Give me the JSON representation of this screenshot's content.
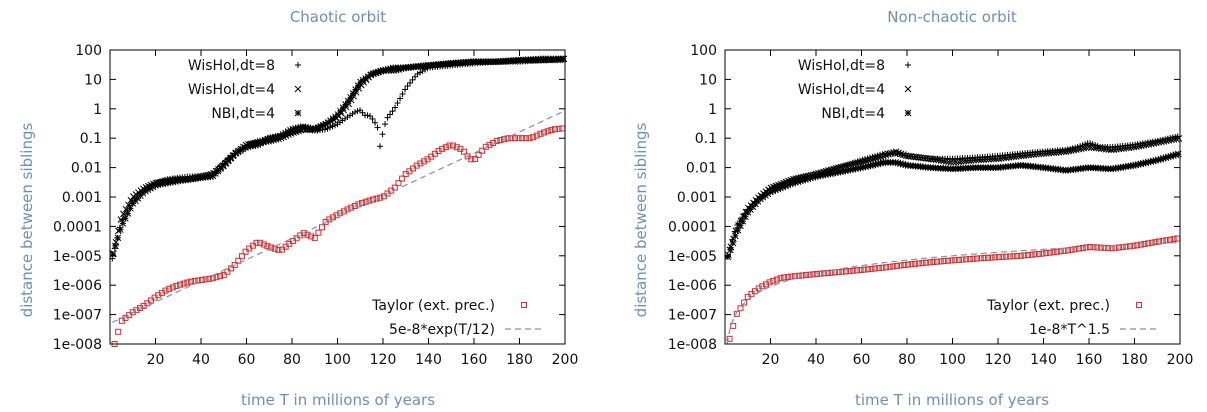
{
  "chart_data": [
    {
      "type": "scatter",
      "title": "Chaotic orbit",
      "xlabel": "time T in millions of years",
      "ylabel": "distance between siblings",
      "xlim": [
        0,
        200
      ],
      "ylim": [
        1e-08,
        100
      ],
      "yscale": "log",
      "x_ticks": [
        20,
        40,
        60,
        80,
        100,
        120,
        140,
        160,
        180,
        200
      ],
      "y_ticks": [
        "100",
        "10",
        "1",
        "0.1",
        "0.01",
        "0.001",
        "0.0001",
        "1e-005",
        "1e-006",
        "1e-007",
        "1e-008"
      ],
      "legend_position": "top-left",
      "legend2_position": "bottom-right",
      "series": [
        {
          "name": "WisHol,dt=8",
          "marker": "plus",
          "color": "#000000",
          "points": [
            [
              1,
              8e-06
            ],
            [
              5,
              0.00015
            ],
            [
              10,
              0.0008
            ],
            [
              15,
              0.002
            ],
            [
              20,
              0.003
            ],
            [
              25,
              0.004
            ],
            [
              30,
              0.0045
            ],
            [
              35,
              0.005
            ],
            [
              40,
              0.005
            ],
            [
              45,
              0.006
            ],
            [
              50,
              0.015
            ],
            [
              55,
              0.03
            ],
            [
              60,
              0.06
            ],
            [
              65,
              0.08
            ],
            [
              70,
              0.1
            ],
            [
              75,
              0.12
            ],
            [
              80,
              0.15
            ],
            [
              85,
              0.2
            ],
            [
              90,
              0.18
            ],
            [
              95,
              0.2
            ],
            [
              100,
              0.3
            ],
            [
              104,
              0.5
            ],
            [
              108,
              0.8
            ],
            [
              110,
              0.9
            ],
            [
              112,
              0.6
            ],
            [
              114,
              0.6
            ],
            [
              116,
              0.4
            ],
            [
              118,
              0.2
            ],
            [
              119,
              0.03
            ],
            [
              120,
              0.2
            ],
            [
              122,
              0.5
            ],
            [
              125,
              1
            ],
            [
              130,
              5
            ],
            [
              135,
              15
            ],
            [
              140,
              25
            ],
            [
              150,
              30
            ],
            [
              160,
              35
            ],
            [
              170,
              40
            ],
            [
              180,
              40
            ],
            [
              190,
              45
            ],
            [
              200,
              45
            ]
          ]
        },
        {
          "name": "WisHol,dt=4",
          "marker": "cross",
          "color": "#000000",
          "points": [
            [
              1,
              8e-06
            ],
            [
              5,
              0.0002
            ],
            [
              10,
              0.001
            ],
            [
              15,
              0.002
            ],
            [
              20,
              0.003
            ],
            [
              25,
              0.0035
            ],
            [
              30,
              0.004
            ],
            [
              35,
              0.004
            ],
            [
              40,
              0.005
            ],
            [
              45,
              0.006
            ],
            [
              50,
              0.012
            ],
            [
              55,
              0.03
            ],
            [
              60,
              0.06
            ],
            [
              65,
              0.07
            ],
            [
              70,
              0.08
            ],
            [
              75,
              0.1
            ],
            [
              80,
              0.15
            ],
            [
              85,
              0.2
            ],
            [
              90,
              0.2
            ],
            [
              95,
              0.3
            ],
            [
              100,
              0.5
            ],
            [
              105,
              1.5
            ],
            [
              110,
              6
            ],
            [
              115,
              15
            ],
            [
              120,
              20
            ],
            [
              125,
              20
            ],
            [
              130,
              25
            ],
            [
              140,
              30
            ],
            [
              150,
              35
            ],
            [
              160,
              40
            ],
            [
              170,
              40
            ],
            [
              180,
              45
            ],
            [
              190,
              45
            ],
            [
              200,
              50
            ]
          ]
        },
        {
          "name": "NBI,dt=4",
          "marker": "star",
          "color": "#000000",
          "points": [
            [
              1,
              1e-05
            ],
            [
              5,
              0.0001
            ],
            [
              10,
              0.0006
            ],
            [
              15,
              0.0015
            ],
            [
              20,
              0.0025
            ],
            [
              25,
              0.003
            ],
            [
              30,
              0.0035
            ],
            [
              35,
              0.004
            ],
            [
              40,
              0.0045
            ],
            [
              45,
              0.005
            ],
            [
              50,
              0.012
            ],
            [
              55,
              0.03
            ],
            [
              60,
              0.05
            ],
            [
              65,
              0.06
            ],
            [
              70,
              0.1
            ],
            [
              75,
              0.12
            ],
            [
              80,
              0.2
            ],
            [
              85,
              0.25
            ],
            [
              90,
              0.2
            ],
            [
              95,
              0.3
            ],
            [
              100,
              0.6
            ],
            [
              105,
              2
            ],
            [
              110,
              8
            ],
            [
              115,
              15
            ],
            [
              120,
              20
            ],
            [
              125,
              25
            ],
            [
              130,
              25
            ],
            [
              140,
              30
            ],
            [
              150,
              35
            ],
            [
              160,
              40
            ],
            [
              170,
              40
            ],
            [
              180,
              45
            ],
            [
              190,
              50
            ],
            [
              200,
              50
            ]
          ]
        },
        {
          "name": "Taylor (ext. prec.)",
          "marker": "square",
          "color": "#d03030",
          "points": [
            [
              2,
              1e-08
            ],
            [
              5,
              6e-08
            ],
            [
              10,
              1.2e-07
            ],
            [
              15,
              2e-07
            ],
            [
              20,
              4e-07
            ],
            [
              25,
              7e-07
            ],
            [
              30,
              1e-06
            ],
            [
              35,
              1.3e-06
            ],
            [
              40,
              1.5e-06
            ],
            [
              45,
              1.7e-06
            ],
            [
              50,
              2.2e-06
            ],
            [
              55,
              5e-06
            ],
            [
              60,
              1.5e-05
            ],
            [
              65,
              3e-05
            ],
            [
              70,
              2e-05
            ],
            [
              75,
              1.5e-05
            ],
            [
              80,
              3e-05
            ],
            [
              85,
              6e-05
            ],
            [
              90,
              4e-05
            ],
            [
              95,
              0.00015
            ],
            [
              100,
              0.00025
            ],
            [
              105,
              0.0004
            ],
            [
              110,
              0.0006
            ],
            [
              115,
              0.0008
            ],
            [
              120,
              0.001
            ],
            [
              125,
              0.002
            ],
            [
              130,
              0.006
            ],
            [
              135,
              0.012
            ],
            [
              140,
              0.02
            ],
            [
              145,
              0.04
            ],
            [
              150,
              0.06
            ],
            [
              155,
              0.04
            ],
            [
              158,
              0.02
            ],
            [
              160,
              0.018
            ],
            [
              165,
              0.05
            ],
            [
              170,
              0.08
            ],
            [
              175,
              0.1
            ],
            [
              180,
              0.1
            ],
            [
              185,
              0.1
            ],
            [
              190,
              0.15
            ],
            [
              195,
              0.2
            ],
            [
              200,
              0.22
            ]
          ]
        },
        {
          "name": "5e-8*exp(T/12)",
          "marker": "dashed-line",
          "color": "#7d91bb",
          "function": "5e-8*exp(T/12)"
        }
      ]
    },
    {
      "type": "scatter",
      "title": "Non-chaotic orbit",
      "xlabel": "time T in millions of years",
      "ylabel": "distance between siblings",
      "xlim": [
        0,
        200
      ],
      "ylim": [
        1e-08,
        100
      ],
      "yscale": "log",
      "x_ticks": [
        20,
        40,
        60,
        80,
        100,
        120,
        140,
        160,
        180,
        200
      ],
      "y_ticks": [
        "100",
        "10",
        "1",
        "0.1",
        "0.01",
        "0.001",
        "0.0001",
        "1e-005",
        "1e-006",
        "1e-007",
        "1e-008"
      ],
      "legend_position": "top-left",
      "legend2_position": "bottom-right",
      "series": [
        {
          "name": "WisHol,dt=8",
          "marker": "plus",
          "color": "#000000",
          "points": [
            [
              1,
              1e-05
            ],
            [
              5,
              0.0001
            ],
            [
              10,
              0.0004
            ],
            [
              15,
              0.001
            ],
            [
              20,
              0.002
            ],
            [
              30,
              0.004
            ],
            [
              40,
              0.006
            ],
            [
              50,
              0.01
            ],
            [
              60,
              0.018
            ],
            [
              70,
              0.03
            ],
            [
              75,
              0.03
            ],
            [
              80,
              0.025
            ],
            [
              90,
              0.02
            ],
            [
              100,
              0.02
            ],
            [
              110,
              0.022
            ],
            [
              120,
              0.025
            ],
            [
              130,
              0.03
            ],
            [
              140,
              0.035
            ],
            [
              150,
              0.04
            ],
            [
              155,
              0.05
            ],
            [
              160,
              0.07
            ],
            [
              165,
              0.05
            ],
            [
              170,
              0.05
            ],
            [
              180,
              0.06
            ],
            [
              190,
              0.08
            ],
            [
              200,
              0.12
            ]
          ]
        },
        {
          "name": "WisHol,dt=4",
          "marker": "cross",
          "color": "#000000",
          "points": [
            [
              1,
              8e-06
            ],
            [
              5,
              8e-05
            ],
            [
              10,
              0.0004
            ],
            [
              15,
              0.001
            ],
            [
              20,
              0.002
            ],
            [
              30,
              0.004
            ],
            [
              40,
              0.006
            ],
            [
              50,
              0.01
            ],
            [
              60,
              0.015
            ],
            [
              70,
              0.025
            ],
            [
              75,
              0.035
            ],
            [
              80,
              0.025
            ],
            [
              90,
              0.02
            ],
            [
              100,
              0.015
            ],
            [
              110,
              0.018
            ],
            [
              120,
              0.02
            ],
            [
              130,
              0.025
            ],
            [
              140,
              0.03
            ],
            [
              150,
              0.035
            ],
            [
              160,
              0.05
            ],
            [
              170,
              0.04
            ],
            [
              180,
              0.05
            ],
            [
              190,
              0.07
            ],
            [
              200,
              0.1
            ]
          ]
        },
        {
          "name": "NBI,dt=4",
          "marker": "star",
          "color": "#000000",
          "points": [
            [
              1,
              8e-06
            ],
            [
              5,
              6e-05
            ],
            [
              10,
              0.0003
            ],
            [
              15,
              0.0008
            ],
            [
              20,
              0.0015
            ],
            [
              30,
              0.003
            ],
            [
              40,
              0.005
            ],
            [
              50,
              0.007
            ],
            [
              60,
              0.01
            ],
            [
              70,
              0.015
            ],
            [
              75,
              0.015
            ],
            [
              80,
              0.012
            ],
            [
              90,
              0.01
            ],
            [
              100,
              0.009
            ],
            [
              110,
              0.01
            ],
            [
              120,
              0.01
            ],
            [
              130,
              0.012
            ],
            [
              140,
              0.01
            ],
            [
              150,
              0.008
            ],
            [
              160,
              0.01
            ],
            [
              170,
              0.009
            ],
            [
              180,
              0.012
            ],
            [
              190,
              0.018
            ],
            [
              200,
              0.03
            ]
          ]
        },
        {
          "name": "Taylor (ext. prec.)",
          "marker": "square",
          "color": "#d03030",
          "points": [
            [
              2,
              1.5e-08
            ],
            [
              5,
              1e-07
            ],
            [
              10,
              4e-07
            ],
            [
              15,
              8e-07
            ],
            [
              20,
              1.3e-06
            ],
            [
              25,
              1.8e-06
            ],
            [
              30,
              2e-06
            ],
            [
              40,
              2.4e-06
            ],
            [
              50,
              2.8e-06
            ],
            [
              60,
              3.3e-06
            ],
            [
              70,
              4e-06
            ],
            [
              80,
              5e-06
            ],
            [
              90,
              6e-06
            ],
            [
              100,
              7e-06
            ],
            [
              110,
              8e-06
            ],
            [
              120,
              9e-06
            ],
            [
              130,
              1e-05
            ],
            [
              140,
              1.2e-05
            ],
            [
              150,
              1.5e-05
            ],
            [
              160,
              2e-05
            ],
            [
              170,
              1.8e-05
            ],
            [
              180,
              2.2e-05
            ],
            [
              190,
              3e-05
            ],
            [
              200,
              4e-05
            ]
          ]
        },
        {
          "name": "1e-8*T^1.5",
          "marker": "dashed-line",
          "color": "#7d91bb",
          "function": "1e-8*T^1.5"
        }
      ]
    }
  ]
}
